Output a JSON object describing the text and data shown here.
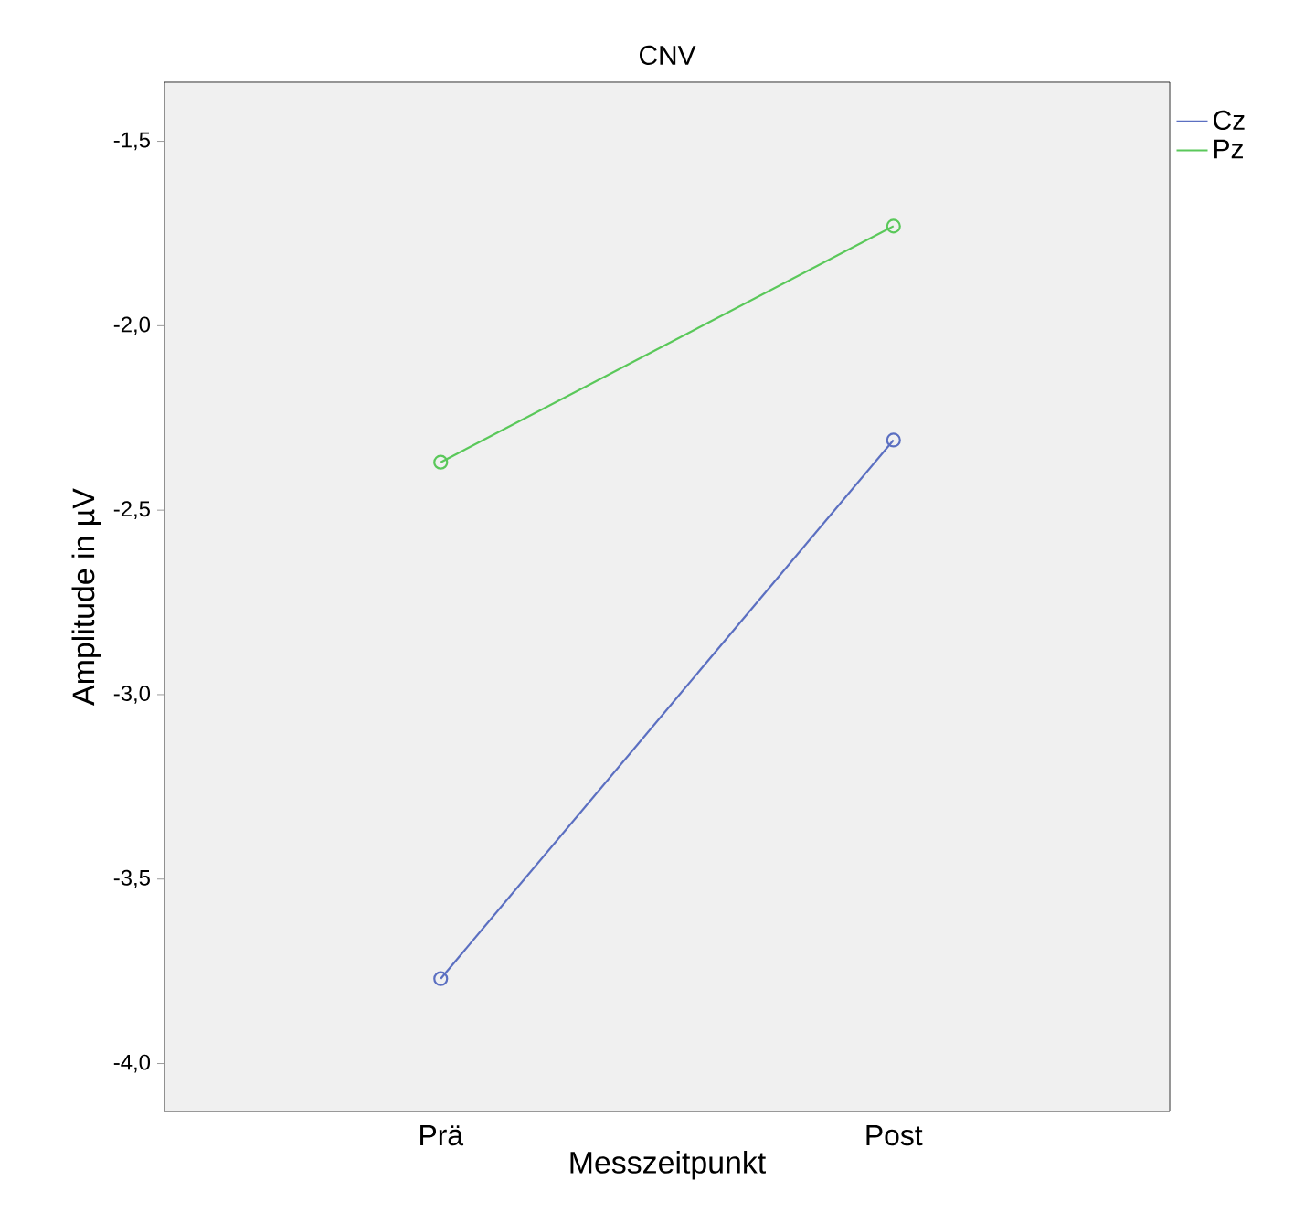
{
  "chart_data": {
    "type": "line",
    "title": "CNV",
    "xlabel": "Messzeitpunkt",
    "ylabel": "Amplitude in µV",
    "categories": [
      "Prä",
      "Post"
    ],
    "series": [
      {
        "name": "Cz",
        "color": "#5b6fc1",
        "values": [
          -3.77,
          -2.31
        ]
      },
      {
        "name": "Pz",
        "color": "#5ac85a",
        "values": [
          -2.37,
          -1.73
        ]
      }
    ],
    "ylim": [
      -4.13,
      -1.34
    ],
    "yticks": [
      {
        "value": -4.0,
        "label": "-4,0"
      },
      {
        "value": -3.5,
        "label": "-3,5"
      },
      {
        "value": -3.0,
        "label": "-3,0"
      },
      {
        "value": -2.5,
        "label": "-2,5"
      },
      {
        "value": -2.0,
        "label": "-2,0"
      },
      {
        "value": -1.5,
        "label": "-1,5"
      }
    ],
    "marker": "circle",
    "line_style": "solid",
    "legend": "top right",
    "grid": false
  }
}
